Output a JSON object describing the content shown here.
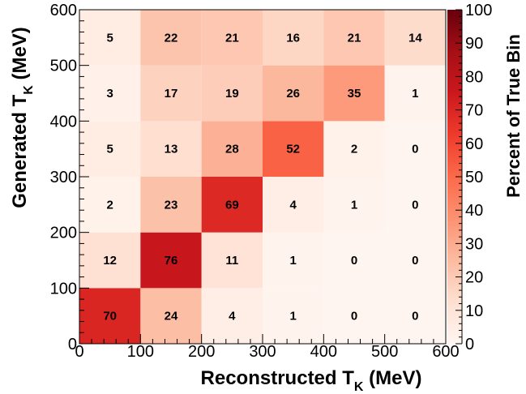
{
  "chart_data": {
    "type": "heatmap",
    "xlabel": "Reconstructed T",
    "xlabel_sub": "K",
    "xlabel_unit": " (MeV)",
    "ylabel": "Generated T",
    "ylabel_sub": "K",
    "ylabel_unit": " (MeV)",
    "zlabel": "Percent of True Bin",
    "xlim": [
      0,
      600
    ],
    "ylim": [
      0,
      600
    ],
    "zlim": [
      0,
      100
    ],
    "x_ticks": [
      0,
      100,
      200,
      300,
      400,
      500,
      600
    ],
    "y_ticks": [
      0,
      100,
      200,
      300,
      400,
      500,
      600
    ],
    "z_ticks": [
      0,
      10,
      20,
      30,
      40,
      50,
      60,
      70,
      80,
      90,
      100
    ],
    "x_bins": [
      0,
      100,
      200,
      300,
      400,
      500,
      600
    ],
    "y_bins": [
      0,
      100,
      200,
      300,
      400,
      500,
      600
    ],
    "values": [
      [
        70,
        24,
        4,
        1,
        0,
        0
      ],
      [
        12,
        76,
        11,
        1,
        0,
        0
      ],
      [
        2,
        23,
        69,
        4,
        1,
        0
      ],
      [
        5,
        13,
        28,
        52,
        2,
        0
      ],
      [
        3,
        17,
        19,
        26,
        35,
        1
      ],
      [
        5,
        22,
        21,
        16,
        21,
        14
      ]
    ],
    "colormap": [
      "#fff5f0",
      "#fee0d2",
      "#fcbba1",
      "#fc9272",
      "#fb6a4a",
      "#ef3b2c",
      "#cb181d",
      "#a50f15",
      "#67000d"
    ],
    "grid": false
  }
}
